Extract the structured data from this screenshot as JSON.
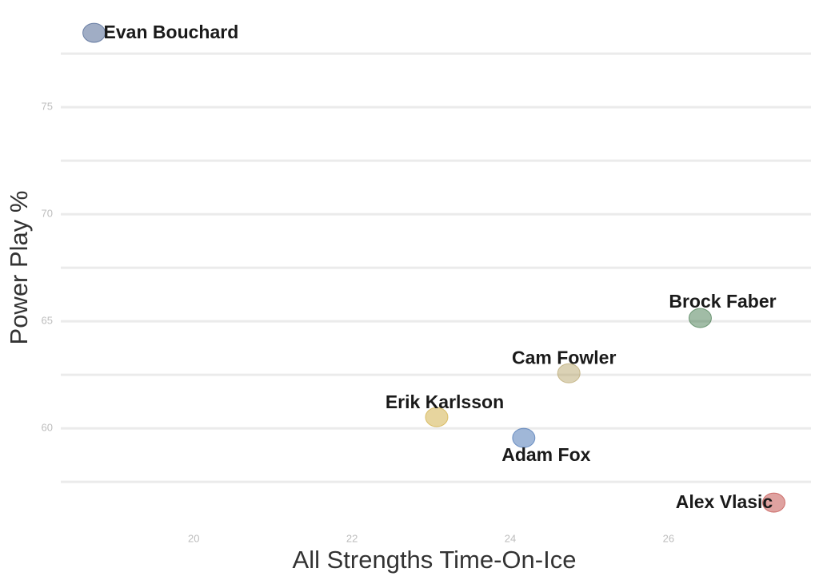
{
  "chart_data": {
    "type": "scatter",
    "x_label": "All Strengths Time-On-Ice",
    "y_label": "Power Play %",
    "labels": [
      "Evan Bouchard",
      "Brock Faber",
      "Cam Fowler",
      "Erik Karlsson",
      "Adam Fox",
      "Alex Vlasic"
    ],
    "x": [
      18.74,
      26.4,
      24.74,
      23.07,
      24.17,
      27.33
    ],
    "values": [
      78.47,
      65.15,
      62.57,
      60.52,
      59.55,
      56.53
    ],
    "colors": [
      "#2c4a7e",
      "#2e6b3a",
      "#b09b5b",
      "#c9a227",
      "#2d5fa8",
      "#b8302c"
    ],
    "xlim": [
      18.32,
      27.8
    ],
    "ylim": [
      55.75,
      79.07
    ],
    "xticks": [
      20,
      22,
      24,
      26
    ],
    "yticks": [
      60,
      65,
      70,
      75
    ],
    "y_minor_grid": [
      57.5,
      62.5,
      67.5,
      72.5,
      77.5
    ],
    "grid": true
  }
}
